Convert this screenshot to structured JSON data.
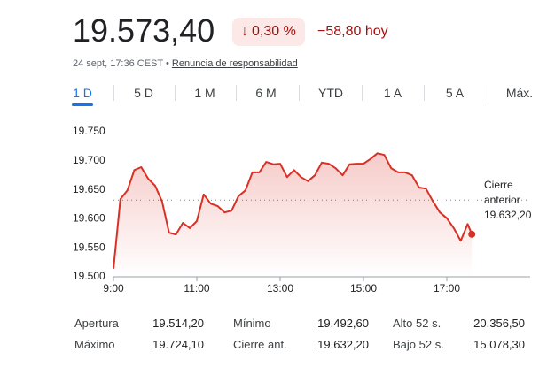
{
  "header": {
    "price": "19.573,40",
    "change_percent": "0,30 %",
    "change_abs": "−58,80 hoy",
    "timestamp": "24 sept, 17:36 CEST •",
    "disclaimer": "Renuncia de responsabilidad"
  },
  "tabs": [
    "1 D",
    "5 D",
    "1 M",
    "6 M",
    "YTD",
    "1 A",
    "5 A",
    "Máx."
  ],
  "selected_tab": 0,
  "chart_data": {
    "type": "line",
    "color": "#d93025",
    "x": [
      "9:00",
      "9:10",
      "9:20",
      "9:30",
      "9:40",
      "9:50",
      "10:00",
      "10:10",
      "10:20",
      "10:30",
      "10:40",
      "10:50",
      "11:00",
      "11:10",
      "11:20",
      "11:30",
      "11:40",
      "11:50",
      "12:00",
      "12:10",
      "12:20",
      "12:30",
      "12:40",
      "12:50",
      "13:00",
      "13:10",
      "13:20",
      "13:30",
      "13:40",
      "13:50",
      "14:00",
      "14:10",
      "14:20",
      "14:30",
      "14:40",
      "14:50",
      "15:00",
      "15:10",
      "15:20",
      "15:30",
      "15:40",
      "15:50",
      "16:00",
      "16:10",
      "16:20",
      "16:30",
      "16:40",
      "16:50",
      "17:00",
      "17:10",
      "17:20",
      "17:30",
      "17:36"
    ],
    "values": [
      19514,
      19634,
      19649,
      19684,
      19689,
      19669,
      19657,
      19630,
      19576,
      19573,
      19593,
      19584,
      19596,
      19642,
      19626,
      19622,
      19611,
      19614,
      19639,
      19649,
      19680,
      19680,
      19698,
      19694,
      19695,
      19672,
      19684,
      19672,
      19665,
      19675,
      19697,
      19695,
      19687,
      19675,
      19694,
      19695,
      19695,
      19703,
      19713,
      19710,
      19687,
      19680,
      19680,
      19675,
      19654,
      19652,
      19630,
      19611,
      19601,
      19584,
      19562,
      19591,
      19573.4
    ],
    "xlim": [
      "9:00",
      "19:00"
    ],
    "xticks": [
      "9:00",
      "11:00",
      "13:00",
      "15:00",
      "17:00"
    ],
    "ylim": [
      19500,
      19750
    ],
    "yticks": [
      {
        "value": 19500,
        "label": "19.500"
      },
      {
        "value": 19550,
        "label": "19.550"
      },
      {
        "value": 19600,
        "label": "19.600"
      },
      {
        "value": 19650,
        "label": "19.650"
      },
      {
        "value": 19700,
        "label": "19.700"
      },
      {
        "value": 19750,
        "label": "19.750"
      }
    ],
    "reference": {
      "label": "Cierre anterior",
      "value": 19632.2,
      "value_label": "19.632,20"
    }
  },
  "stats": [
    [
      "Apertura",
      "19.514,20",
      "Mínimo",
      "19.492,60",
      "Alto 52 s.",
      "20.356,50"
    ],
    [
      "Máximo",
      "19.724,10",
      "Cierre ant.",
      "19.632,20",
      "Bajo 52 s.",
      "15.078,30"
    ]
  ]
}
